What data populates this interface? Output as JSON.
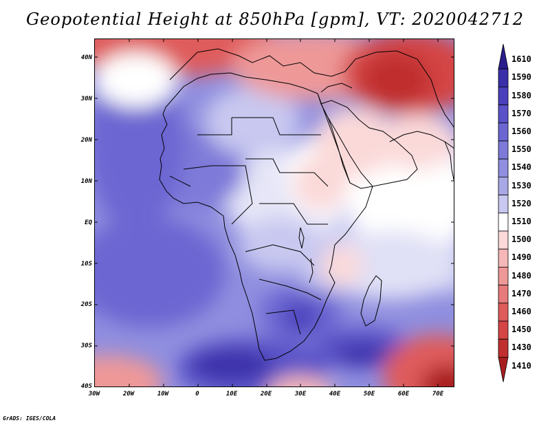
{
  "title": "Geopotential Height at 850hPa [gpm], VT: 2020042712",
  "footer": "GrADS: IGES/COLA",
  "map": {
    "lat_ticks": [
      "40N",
      "30N",
      "20N",
      "10N",
      "EQ",
      "10S",
      "20S",
      "30S",
      "40S"
    ],
    "lon_ticks": [
      "30W",
      "20W",
      "10W",
      "0",
      "10E",
      "20E",
      "30E",
      "40E",
      "50E",
      "60E",
      "70E"
    ]
  },
  "colorbar": {
    "labels": [
      "1610",
      "1590",
      "1580",
      "1570",
      "1560",
      "1550",
      "1540",
      "1530",
      "1520",
      "1510",
      "1500",
      "1490",
      "1480",
      "1470",
      "1460",
      "1450",
      "1430",
      "1410"
    ],
    "colors": [
      "#2a1e8c",
      "#3a2fa8",
      "#4a40bb",
      "#5a52c8",
      "#6c66d2",
      "#7e7ad9",
      "#8f8edf",
      "#a8a8e6",
      "#c8c8f0",
      "#ffffff",
      "#fbd9d9",
      "#f5b7b7",
      "#ee9898",
      "#e77a7a",
      "#df5c5c",
      "#d44545",
      "#c02f2f",
      "#a81e1e"
    ]
  }
}
